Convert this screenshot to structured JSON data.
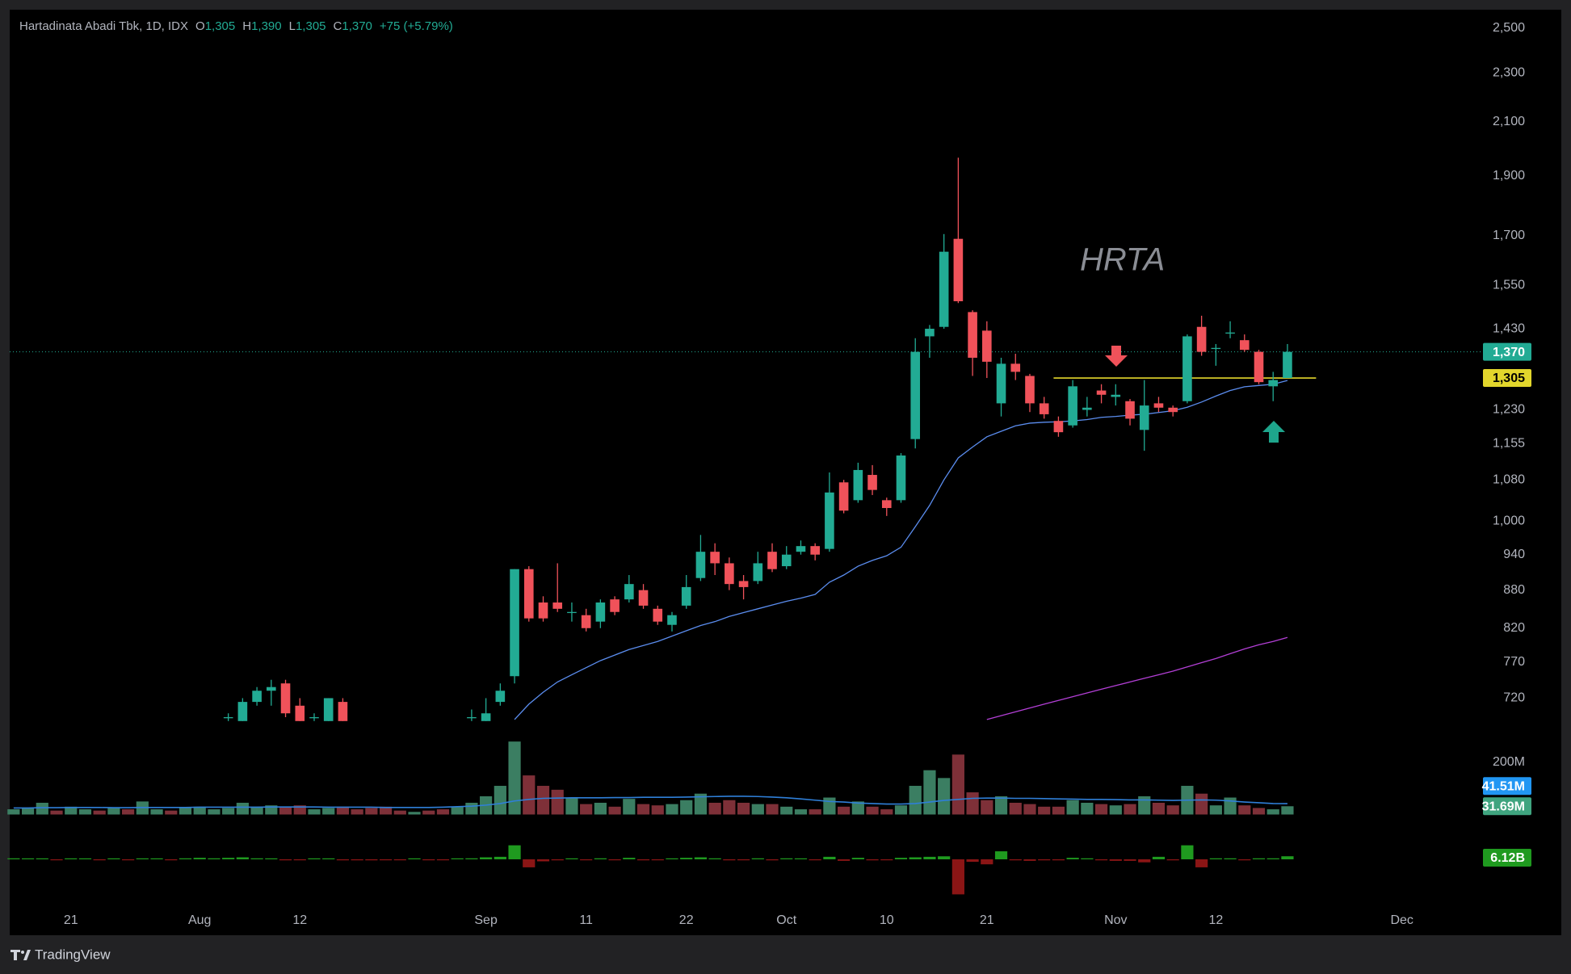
{
  "header": {
    "symbol": "Hartadinata Abadi Tbk, 1D, IDX",
    "ohlc": [
      {
        "key": "O",
        "value": "1,305"
      },
      {
        "key": "H",
        "value": "1,390"
      },
      {
        "key": "L",
        "value": "1,305"
      },
      {
        "key": "C",
        "value": "1,370"
      }
    ],
    "change": "+75 (+5.79%)"
  },
  "brand": "TradingView",
  "chart_data": {
    "type": "candlestick",
    "annotation": "HRTA",
    "categories": [
      null,
      null,
      null,
      null,
      "21",
      null,
      null,
      null,
      null,
      null,
      null,
      null,
      null,
      "Aug",
      null,
      null,
      null,
      null,
      null,
      null,
      "12",
      null,
      null,
      null,
      null,
      null,
      null,
      null,
      null,
      null,
      null,
      null,
      null,
      "Sep",
      null,
      null,
      null,
      null,
      null,
      null,
      "11",
      null,
      null,
      null,
      null,
      null,
      null,
      "22",
      null,
      null,
      null,
      null,
      null,
      null,
      "Oct",
      null,
      null,
      null,
      null,
      null,
      null,
      "10",
      null,
      null,
      null,
      null,
      null,
      null,
      "21",
      null,
      null,
      null,
      null,
      null,
      null,
      null,
      null,
      "Nov",
      null,
      null,
      null,
      null,
      null,
      null,
      "12",
      null,
      null,
      null,
      null,
      null,
      null,
      null,
      null,
      null,
      null,
      null,
      null,
      "Dec",
      null,
      null,
      null,
      null
    ],
    "open": [
      null,
      null,
      null,
      null,
      null,
      null,
      null,
      null,
      null,
      null,
      null,
      null,
      null,
      null,
      null,
      695,
      690,
      715,
      730,
      740,
      710,
      695,
      690,
      715,
      null,
      null,
      null,
      null,
      null,
      null,
      null,
      null,
      695,
      690,
      715,
      750,
      915,
      860,
      860,
      845,
      840,
      830,
      865,
      865,
      880,
      850,
      825,
      855,
      900,
      945,
      925,
      895,
      895,
      945,
      920,
      945,
      955,
      950,
      1075,
      1040,
      1090,
      1040,
      1040,
      1165,
      1410,
      1435,
      1690,
      1475,
      1425,
      1245,
      1340,
      1310,
      1245,
      1205,
      1195,
      1230,
      1275,
      1260,
      1250,
      1185,
      1245,
      1235,
      1250,
      1435,
      1380,
      1420,
      1400,
      1370,
      1285,
      1305,
      null,
      null,
      null,
      null,
      null,
      null,
      null,
      null,
      null,
      null,
      null,
      null
    ],
    "high": [
      null,
      null,
      null,
      null,
      null,
      null,
      null,
      null,
      null,
      null,
      null,
      null,
      null,
      null,
      null,
      700,
      720,
      735,
      745,
      745,
      720,
      700,
      720,
      720,
      null,
      null,
      null,
      null,
      null,
      null,
      null,
      null,
      705,
      720,
      740,
      915,
      920,
      870,
      925,
      860,
      850,
      865,
      870,
      905,
      890,
      855,
      845,
      905,
      975,
      960,
      935,
      905,
      945,
      960,
      955,
      965,
      960,
      1095,
      1080,
      1115,
      1110,
      1045,
      1135,
      1405,
      1440,
      1705,
      1965,
      1480,
      1450,
      1355,
      1365,
      1315,
      1260,
      1215,
      1300,
      1260,
      1290,
      1290,
      1255,
      1300,
      1260,
      1240,
      1415,
      1465,
      1390,
      1450,
      1415,
      1375,
      1320,
      1390,
      null,
      null,
      null,
      null,
      null,
      null,
      null,
      null,
      null,
      null,
      null,
      null
    ],
    "low": [
      null,
      null,
      null,
      null,
      null,
      null,
      null,
      null,
      null,
      null,
      null,
      null,
      null,
      null,
      null,
      690,
      690,
      710,
      710,
      695,
      690,
      690,
      690,
      690,
      null,
      null,
      null,
      null,
      null,
      null,
      null,
      null,
      690,
      690,
      710,
      740,
      830,
      830,
      845,
      830,
      815,
      820,
      840,
      860,
      850,
      825,
      815,
      850,
      895,
      905,
      880,
      865,
      890,
      910,
      915,
      940,
      930,
      945,
      1015,
      1035,
      1050,
      1010,
      1035,
      1145,
      1355,
      1430,
      1500,
      1310,
      1305,
      1215,
      1300,
      1225,
      1210,
      1170,
      1190,
      1215,
      1245,
      1240,
      1195,
      1140,
      1225,
      1215,
      1245,
      1360,
      1335,
      1405,
      1370,
      1290,
      1250,
      1305,
      null,
      null,
      null,
      null,
      null,
      null,
      null,
      null,
      null,
      null,
      null,
      null
    ],
    "close": [
      null,
      null,
      null,
      null,
      null,
      null,
      null,
      null,
      null,
      null,
      null,
      null,
      null,
      null,
      null,
      695,
      715,
      730,
      735,
      700,
      690,
      695,
      720,
      690,
      null,
      null,
      null,
      null,
      null,
      null,
      null,
      null,
      695,
      700,
      730,
      915,
      835,
      835,
      850,
      845,
      820,
      860,
      845,
      890,
      855,
      830,
      840,
      885,
      945,
      925,
      890,
      885,
      925,
      915,
      940,
      955,
      940,
      1055,
      1020,
      1100,
      1060,
      1025,
      1130,
      1370,
      1430,
      1650,
      1505,
      1355,
      1345,
      1340,
      1320,
      1245,
      1220,
      1180,
      1285,
      1235,
      1265,
      1265,
      1210,
      1240,
      1235,
      1225,
      1410,
      1370,
      1380,
      1420,
      1375,
      1295,
      1300,
      1370,
      null,
      null,
      null,
      null,
      null,
      null,
      null,
      null,
      null,
      null,
      null,
      null
    ],
    "up_color": "#22ab94",
    "down_color": "#f0525a",
    "ylim": [
      677,
      2585
    ],
    "log_scale": true,
    "grid": false,
    "yticks": [
      {
        "value": 720,
        "label": "720"
      },
      {
        "value": 770,
        "label": "770"
      },
      {
        "value": 820,
        "label": "820"
      },
      {
        "value": 880,
        "label": "880"
      },
      {
        "value": 940,
        "label": "940"
      },
      {
        "value": 1000,
        "label": "1,000"
      },
      {
        "value": 1080,
        "label": "1,080"
      },
      {
        "value": 1155,
        "label": "1,155"
      },
      {
        "value": 1230,
        "label": "1,230"
      },
      {
        "value": 1430,
        "label": "1,430"
      },
      {
        "value": 1550,
        "label": "1,550"
      },
      {
        "value": 1700,
        "label": "1,700"
      },
      {
        "value": 1900,
        "label": "1,900"
      },
      {
        "value": 2100,
        "label": "2,100"
      },
      {
        "value": 2300,
        "label": "2,300"
      },
      {
        "value": 2500,
        "label": "2,500"
      }
    ],
    "last_price": {
      "value": 1370,
      "label": "1,370",
      "color": "#22ab94"
    },
    "hline": {
      "value": 1305,
      "label": "1,305",
      "color": "#e2d62c"
    },
    "lines": [
      {
        "color": "#5b8def",
        "values": [
          null,
          null,
          null,
          null,
          null,
          null,
          null,
          null,
          null,
          null,
          null,
          null,
          null,
          null,
          null,
          null,
          null,
          null,
          null,
          null,
          null,
          null,
          null,
          null,
          null,
          null,
          null,
          null,
          null,
          null,
          null,
          null,
          null,
          null,
          null,
          692,
          712,
          728,
          742,
          752,
          762,
          772,
          780,
          788,
          794,
          800,
          808,
          816,
          824,
          830,
          838,
          844,
          850,
          856,
          862,
          867,
          873,
          893,
          905,
          920,
          930,
          938,
          953,
          990,
          1030,
          1080,
          1125,
          1148,
          1170,
          1182,
          1194,
          1200,
          1202,
          1203,
          1205,
          1208,
          1213,
          1215,
          1218,
          1220,
          1224,
          1228,
          1236,
          1248,
          1262,
          1275,
          1284,
          1287,
          1290,
          1299,
          null,
          null,
          null,
          null,
          null,
          null,
          null,
          null,
          null,
          null,
          null,
          null
        ]
      },
      {
        "color": "#b33fd6",
        "values": [
          null,
          null,
          null,
          null,
          null,
          null,
          null,
          null,
          null,
          null,
          null,
          null,
          null,
          null,
          null,
          null,
          null,
          null,
          null,
          null,
          null,
          null,
          null,
          null,
          null,
          null,
          null,
          null,
          null,
          null,
          null,
          null,
          null,
          null,
          null,
          null,
          null,
          null,
          null,
          null,
          null,
          null,
          null,
          null,
          null,
          null,
          null,
          null,
          null,
          null,
          null,
          null,
          null,
          null,
          null,
          null,
          null,
          null,
          null,
          null,
          null,
          null,
          null,
          null,
          null,
          null,
          null,
          null,
          692,
          697,
          702,
          707,
          712,
          717,
          722,
          727,
          732,
          737,
          742,
          747,
          752,
          757,
          763,
          769,
          775,
          782,
          789,
          795,
          800,
          806,
          null,
          null,
          null,
          null,
          null,
          null,
          null,
          null,
          null,
          null,
          null,
          null
        ]
      }
    ],
    "volume": {
      "values": [
        20,
        25,
        45,
        15,
        30,
        20,
        15,
        25,
        20,
        50,
        20,
        15,
        25,
        30,
        20,
        25,
        45,
        30,
        35,
        30,
        35,
        20,
        25,
        30,
        20,
        25,
        30,
        15,
        10,
        15,
        20,
        30,
        45,
        70,
        110,
        280,
        150,
        110,
        95,
        65,
        40,
        45,
        30,
        60,
        40,
        35,
        40,
        55,
        80,
        45,
        55,
        45,
        40,
        40,
        30,
        20,
        20,
        65,
        30,
        50,
        30,
        20,
        35,
        110,
        170,
        140,
        230,
        85,
        55,
        70,
        45,
        40,
        30,
        30,
        55,
        45,
        40,
        35,
        40,
        70,
        45,
        35,
        110,
        80,
        35,
        65,
        35,
        25,
        20,
        31.69,
        null,
        null,
        null,
        null,
        null,
        null,
        null,
        null,
        null,
        null,
        null,
        null
      ],
      "last_label": "31.69M",
      "up_color": "#3b7e62",
      "down_color": "#7e3038",
      "ylim": [
        0,
        310
      ],
      "yticks": [
        {
          "value": 200,
          "label": "200M"
        }
      ],
      "ma": {
        "color": "#2f7fd8",
        "last_label": "41.51M",
        "values": [
          25,
          25,
          26,
          26,
          27,
          27,
          27,
          26,
          26,
          27,
          27,
          27,
          27,
          28,
          28,
          28,
          28,
          28,
          29,
          29,
          29,
          29,
          28,
          28,
          28,
          28,
          27,
          27,
          27,
          27,
          28,
          30,
          32,
          36,
          42,
          52,
          58,
          62,
          63,
          64,
          64,
          64,
          65,
          65,
          66,
          66,
          66,
          67,
          68,
          69,
          70,
          70,
          69,
          67,
          64,
          60,
          55,
          50,
          48,
          44,
          42,
          40,
          40,
          42,
          48,
          54,
          58,
          62,
          63,
          63,
          62,
          62,
          61,
          60,
          59,
          58,
          58,
          57,
          56,
          56,
          55,
          54,
          55,
          56,
          55,
          52,
          48,
          45,
          42,
          41.51,
          null,
          null,
          null,
          null,
          null,
          null,
          null,
          null,
          null,
          null,
          null,
          null
        ]
      }
    },
    "delta": {
      "values": [
        2,
        1,
        1,
        -1,
        1,
        1,
        -1,
        1,
        -1,
        1,
        1,
        -1,
        2,
        3,
        2,
        3,
        4,
        2,
        1,
        -2,
        -1,
        1,
        1,
        -2,
        -2,
        -2,
        -1,
        -1,
        1,
        -1,
        -1,
        1,
        2,
        4,
        5,
        28,
        -16,
        -4,
        -2,
        1,
        -1,
        2,
        -1,
        3,
        -2,
        -1,
        1,
        3,
        4,
        2,
        -2,
        -1,
        2,
        -2,
        2,
        1,
        -1,
        5,
        -3,
        3,
        -2,
        -1,
        3,
        4,
        5,
        6,
        -70,
        -5,
        -10,
        16,
        -2,
        -3,
        -2,
        -2,
        3,
        2,
        -2,
        -3,
        -3,
        -6,
        5,
        -2,
        28,
        -16,
        2,
        2,
        -2,
        2,
        2,
        6.12,
        null,
        null,
        null,
        null,
        null,
        null,
        null,
        null,
        null,
        null,
        null,
        null
      ],
      "last_label": "6.12B",
      "up_color": "#1f9a1f",
      "down_color": "#8b1515"
    }
  }
}
